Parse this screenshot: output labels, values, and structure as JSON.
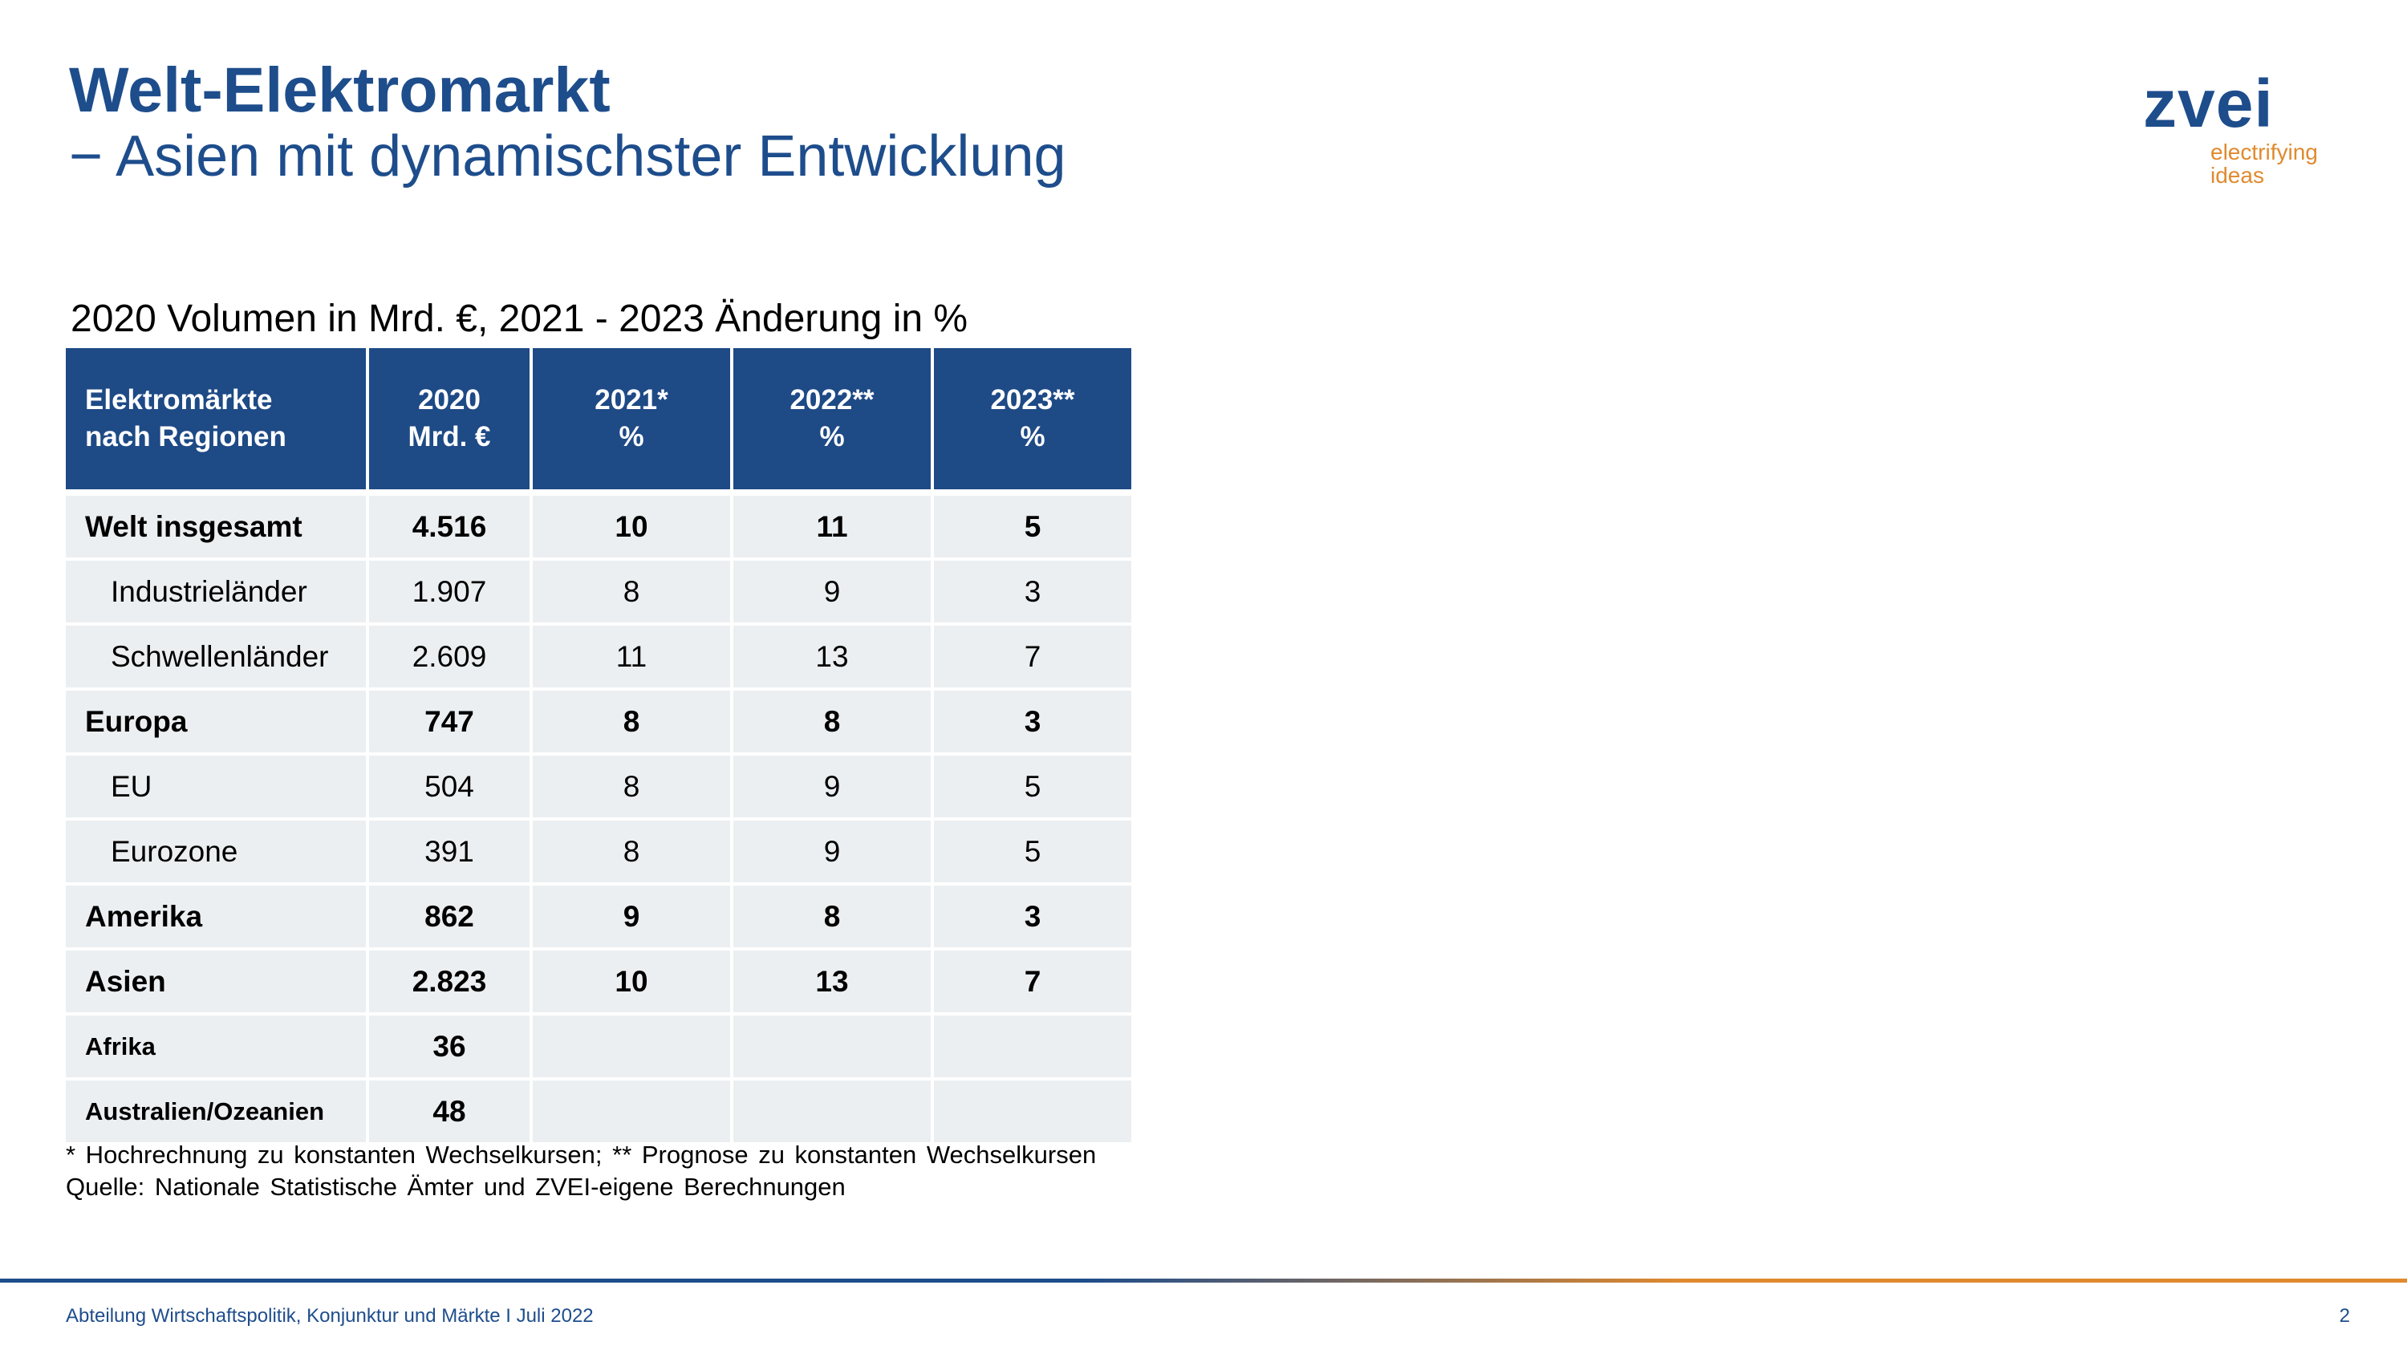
{
  "slide": {
    "title": "Welt-Elektromarkt",
    "subtitle": "− Asien mit dynamischster Entwicklung",
    "caption": "2020 Volumen in Mrd. €, 2021 - 2023 Änderung in %"
  },
  "logo": {
    "wordmark": "zvei",
    "tagline_line1": "electrifying",
    "tagline_line2": "ideas"
  },
  "table": {
    "header": {
      "col1_line1": "Elektromärkte",
      "col1_line2": "nach Regionen",
      "col2_line1": "2020",
      "col2_line2": "Mrd. €",
      "col3_line1": "2021*",
      "col3_line2": "%",
      "col4_line1": "2022**",
      "col4_line2": "%",
      "col5_line1": "2023**",
      "col5_line2": "%"
    },
    "rows": [
      {
        "region": "Welt insgesamt",
        "v2020": "4.516",
        "v2021": "10",
        "v2022": "11",
        "v2023": "5"
      },
      {
        "region": "Industrieländer",
        "v2020": "1.907",
        "v2021": "8",
        "v2022": "9",
        "v2023": "3"
      },
      {
        "region": "Schwellenländer",
        "v2020": "2.609",
        "v2021": "11",
        "v2022": "13",
        "v2023": "7"
      },
      {
        "region": "Europa",
        "v2020": "747",
        "v2021": "8",
        "v2022": "8",
        "v2023": "3"
      },
      {
        "region": "EU",
        "v2020": "504",
        "v2021": "8",
        "v2022": "9",
        "v2023": "5"
      },
      {
        "region": "Eurozone",
        "v2020": "391",
        "v2021": "8",
        "v2022": "9",
        "v2023": "5"
      },
      {
        "region": "Amerika",
        "v2020": "862",
        "v2021": "9",
        "v2022": "8",
        "v2023": "3"
      },
      {
        "region": "Asien",
        "v2020": "2.823",
        "v2021": "10",
        "v2022": "13",
        "v2023": "7"
      },
      {
        "region": "Afrika",
        "v2020": "36",
        "v2021": "",
        "v2022": "",
        "v2023": ""
      },
      {
        "region": "Australien/Ozeanien",
        "v2020": "48",
        "v2021": "",
        "v2022": "",
        "v2023": ""
      }
    ]
  },
  "notes": {
    "footnote": "* Hochrechnung zu konstanten Wechselkursen; ** Prognose zu konstanten Wechselkursen",
    "source": "Quelle: Nationale Statistische Ämter und ZVEI-eigene Berechnungen"
  },
  "footer": {
    "text": "Abteilung Wirtschaftspolitik, Konjunktur und Märkte I Juli 2022",
    "page": "2"
  },
  "colors": {
    "brand_blue": "#1e4d8c",
    "brand_orange": "#e08a2e",
    "header_fill": "#1e4a86",
    "row_fill": "#eceff1"
  }
}
